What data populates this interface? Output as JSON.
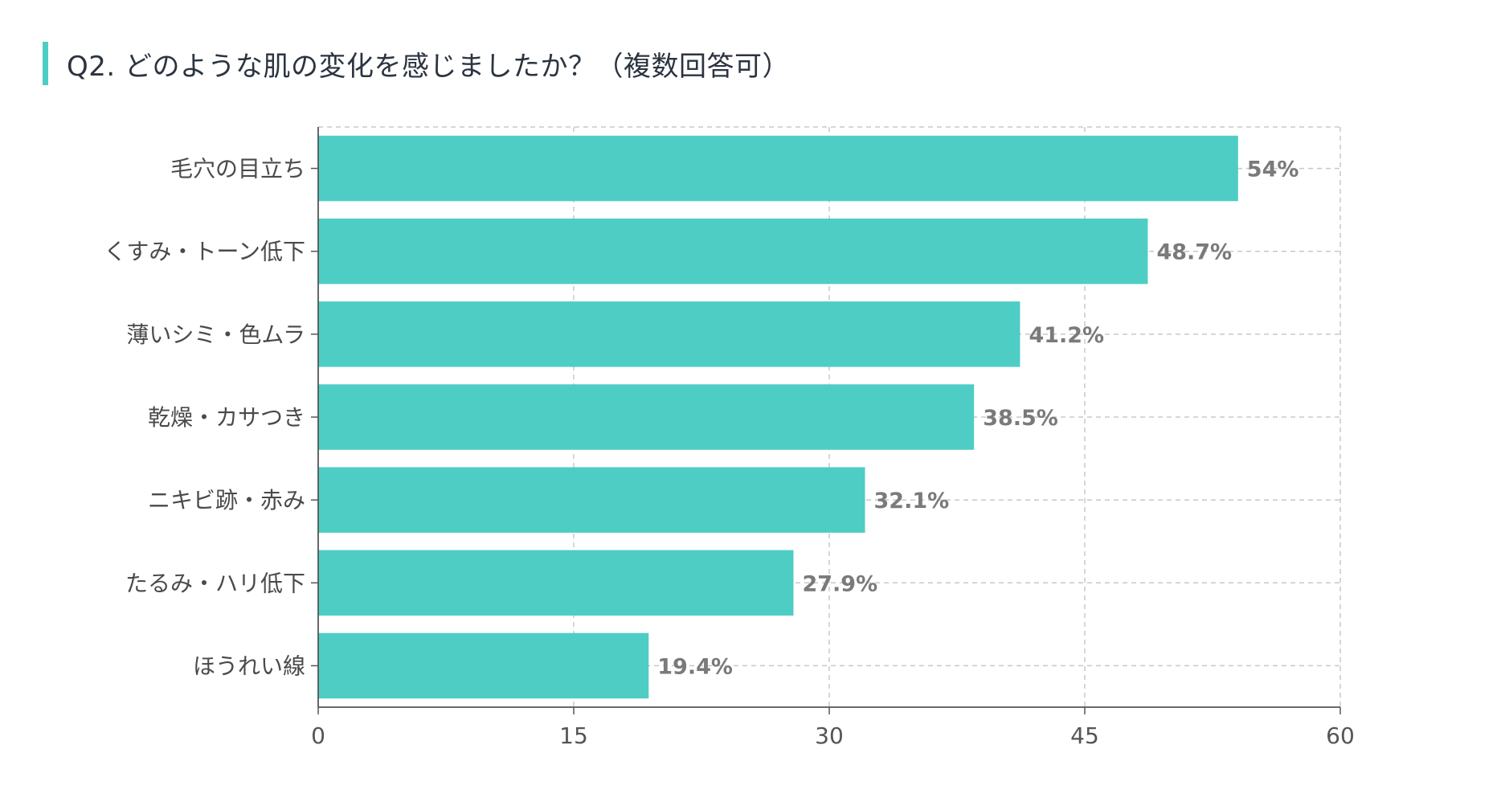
{
  "title": "Q2. どのような肌の変化を感じましたか？（複数回答可）",
  "colors": {
    "bar": "#4ecdc4",
    "accent": "#4ecdc4",
    "grid": "#c8c8c8",
    "axis": "#555555",
    "value_label": "#7a7a7a"
  },
  "chart_data": {
    "type": "bar",
    "orientation": "horizontal",
    "title": "Q2. どのような肌の変化を感じましたか？（複数回答可）",
    "categories": [
      "毛穴の目立ち",
      "くすみ・トーン低下",
      "薄いシミ・色ムラ",
      "乾燥・カサつき",
      "ニキビ跡・赤み",
      "たるみ・ハリ低下",
      "ほうれい線"
    ],
    "values": [
      54,
      48.7,
      41.2,
      38.5,
      32.1,
      27.9,
      19.4
    ],
    "value_labels": [
      "54%",
      "48.7%",
      "41.2%",
      "38.5%",
      "32.1%",
      "27.9%",
      "19.4%"
    ],
    "xlim": [
      0,
      60
    ],
    "xticks": [
      0,
      15,
      30,
      45,
      60
    ],
    "xtick_labels": [
      "0",
      "15",
      "30",
      "45",
      "60"
    ],
    "xlabel": "",
    "ylabel": "",
    "grid": true,
    "grid_style": "dashed"
  }
}
